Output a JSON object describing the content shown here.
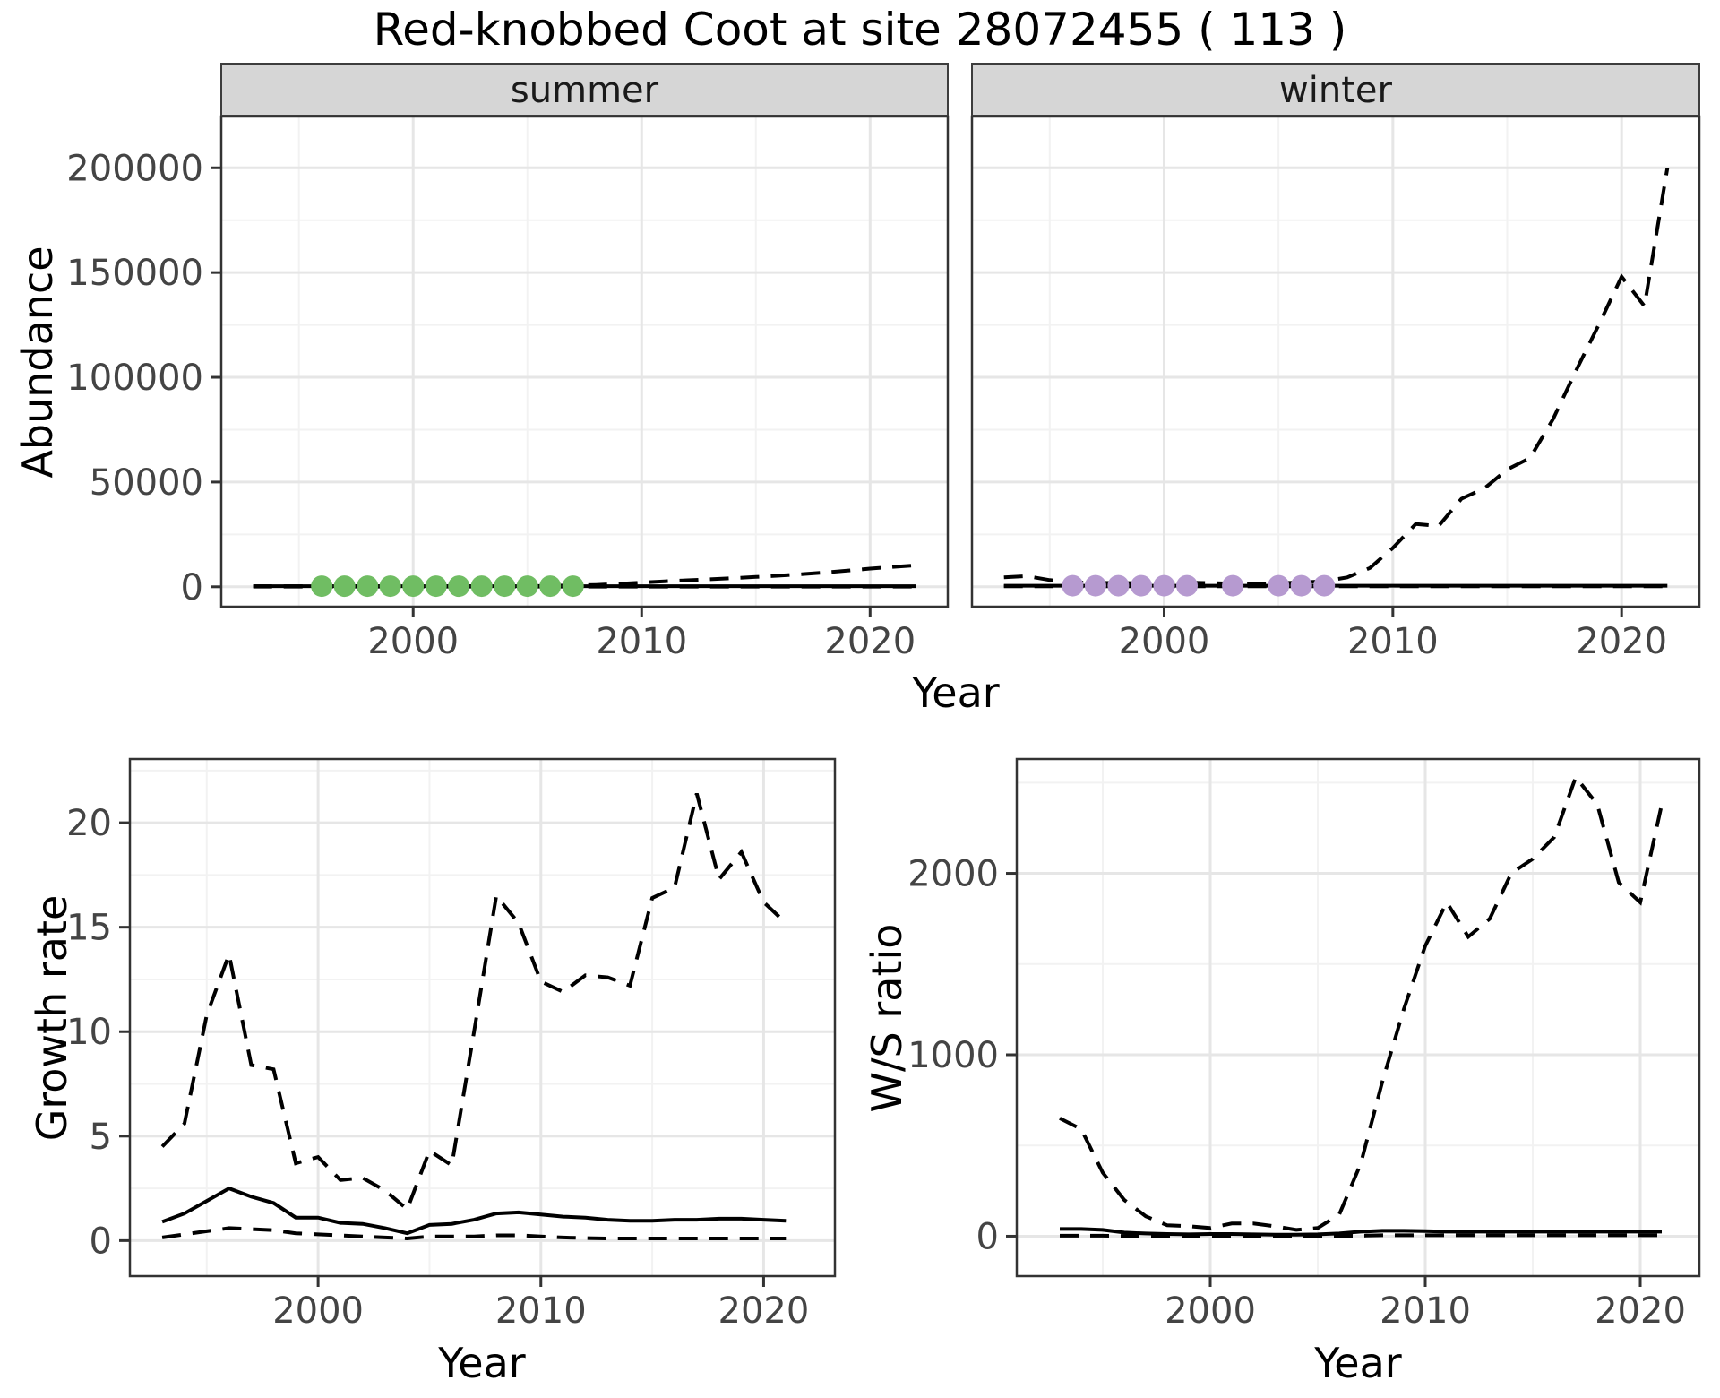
{
  "page_title": "Red-knobbed Coot at site 28072455 ( 113 )",
  "labels": {
    "abundance": "Abundance",
    "growth_rate": "Growth rate",
    "ws_ratio": "W/S ratio",
    "year": "Year"
  },
  "colors": {
    "line": "#000000",
    "summer_point": "#70bd63",
    "winter_point": "#b69ad0",
    "strip_bg": "#d6d6d6",
    "strip_border": "#3d3d3d",
    "panel_border": "#333333",
    "grid_major": "#e6e6e6",
    "grid_minor": "#f2f2f2",
    "tick_mark": "#333333",
    "tick_text": "#444444"
  },
  "chart_data": [
    {
      "id": "abundance_summer",
      "type": "line",
      "facet_label": "summer",
      "xlabel": "Year",
      "ylabel": "Abundance",
      "x_range": [
        1991.6,
        2023.4
      ],
      "y_range": [
        -9500,
        224500
      ],
      "x_ticks": [
        {
          "v": 2000,
          "label": "2000"
        },
        {
          "v": 2010,
          "label": "2010"
        },
        {
          "v": 2020,
          "label": "2020"
        }
      ],
      "x_minor": [
        1995,
        2005,
        2015
      ],
      "y_ticks": [
        {
          "v": 0,
          "label": "0"
        },
        {
          "v": 50000,
          "label": "50000"
        },
        {
          "v": 100000,
          "label": "100000"
        },
        {
          "v": 150000,
          "label": "150000"
        },
        {
          "v": 200000,
          "label": "200000"
        }
      ],
      "y_minor": [
        25000,
        75000,
        125000,
        175000
      ],
      "x": [
        1993,
        1994,
        1995,
        1996,
        1997,
        1998,
        1999,
        2000,
        2001,
        2002,
        2003,
        2004,
        2005,
        2006,
        2007,
        2008,
        2009,
        2010,
        2011,
        2012,
        2013,
        2014,
        2015,
        2016,
        2017,
        2018,
        2019,
        2020,
        2021,
        2022
      ],
      "series": [
        {
          "name": "upper_ci",
          "style": "dashed",
          "values": [
            300,
            300,
            300,
            300,
            300,
            300,
            300,
            300,
            300,
            300,
            300,
            300,
            300,
            500,
            600,
            900,
            1400,
            2000,
            2600,
            3100,
            3600,
            4100,
            4700,
            5300,
            6000,
            6800,
            7700,
            8700,
            9500,
            10200
          ]
        },
        {
          "name": "estimate",
          "style": "solid",
          "values": [
            300,
            300,
            300,
            300,
            300,
            300,
            300,
            300,
            300,
            300,
            300,
            300,
            300,
            300,
            300,
            300,
            300,
            300,
            300,
            300,
            300,
            300,
            300,
            300,
            300,
            300,
            300,
            300,
            300,
            300
          ]
        },
        {
          "name": "lower_ci",
          "style": "dashed",
          "values": [
            100,
            100,
            100,
            100,
            100,
            100,
            100,
            100,
            100,
            100,
            100,
            100,
            100,
            100,
            100,
            100,
            100,
            100,
            100,
            100,
            100,
            100,
            100,
            100,
            100,
            100,
            100,
            100,
            100,
            100
          ]
        }
      ],
      "points": {
        "name": "summer-observation",
        "color_key": "summer_point",
        "x": [
          1996,
          1997,
          1998,
          1999,
          2000,
          2001,
          2002,
          2003,
          2004,
          2005,
          2006,
          2007
        ],
        "y": [
          300,
          300,
          300,
          300,
          300,
          300,
          300,
          300,
          300,
          300,
          300,
          300
        ]
      }
    },
    {
      "id": "abundance_winter",
      "type": "line",
      "facet_label": "winter",
      "xlabel": "Year",
      "ylabel": "Abundance",
      "x_range": [
        1991.6,
        2023.4
      ],
      "y_range": [
        -9500,
        224500
      ],
      "x_ticks": [
        {
          "v": 2000,
          "label": "2000"
        },
        {
          "v": 2010,
          "label": "2010"
        },
        {
          "v": 2020,
          "label": "2020"
        }
      ],
      "x_minor": [
        1995,
        2005,
        2015
      ],
      "y_ticks": [
        {
          "v": 0,
          "label": "0"
        },
        {
          "v": 50000,
          "label": "50000"
        },
        {
          "v": 100000,
          "label": "100000"
        },
        {
          "v": 150000,
          "label": "150000"
        },
        {
          "v": 200000,
          "label": "200000"
        }
      ],
      "y_minor": [
        25000,
        75000,
        125000,
        175000
      ],
      "x": [
        1993,
        1994,
        1995,
        1996,
        1997,
        1998,
        1999,
        2000,
        2001,
        2002,
        2003,
        2004,
        2005,
        2006,
        2007,
        2008,
        2009,
        2010,
        2011,
        2012,
        2013,
        2014,
        2015,
        2016,
        2017,
        2018,
        2019,
        2020,
        2021,
        2022
      ],
      "series": [
        {
          "name": "upper_ci",
          "style": "dashed",
          "values": [
            4500,
            5100,
            3200,
            2100,
            1900,
            1800,
            1800,
            1800,
            2000,
            1800,
            1500,
            1400,
            1700,
            2100,
            2600,
            4500,
            9000,
            18500,
            30000,
            29000,
            42000,
            47000,
            56000,
            61500,
            80000,
            103000,
            125000,
            148000,
            134000,
            200000
          ]
        },
        {
          "name": "estimate",
          "style": "solid",
          "values": [
            500,
            500,
            500,
            500,
            500,
            500,
            500,
            500,
            500,
            500,
            500,
            500,
            500,
            500,
            500,
            500,
            500,
            500,
            500,
            500,
            500,
            500,
            500,
            500,
            500,
            500,
            500,
            500,
            500,
            500
          ]
        },
        {
          "name": "lower_ci",
          "style": "dashed",
          "values": [
            200,
            200,
            200,
            200,
            200,
            200,
            200,
            200,
            200,
            200,
            200,
            200,
            200,
            200,
            200,
            200,
            200,
            200,
            200,
            200,
            200,
            200,
            200,
            200,
            200,
            200,
            200,
            200,
            200,
            200
          ]
        }
      ],
      "points": {
        "name": "winter-observation",
        "color_key": "winter_point",
        "x": [
          1996,
          1997,
          1998,
          1999,
          2000,
          2001,
          2003,
          2005,
          2006,
          2007
        ],
        "y": [
          500,
          500,
          500,
          500,
          500,
          500,
          500,
          500,
          500,
          500
        ]
      }
    },
    {
      "id": "growth_rate",
      "type": "line",
      "facet_label": "",
      "xlabel": "Year",
      "ylabel": "Growth rate",
      "x_range": [
        1991.55,
        2023.2
      ],
      "y_range": [
        -1.7,
        23.05
      ],
      "x_ticks": [
        {
          "v": 2000,
          "label": "2000"
        },
        {
          "v": 2010,
          "label": "2010"
        },
        {
          "v": 2020,
          "label": "2020"
        }
      ],
      "x_minor": [
        1995,
        2005,
        2015
      ],
      "y_ticks": [
        {
          "v": 0,
          "label": "0"
        },
        {
          "v": 5,
          "label": "5"
        },
        {
          "v": 10,
          "label": "10"
        },
        {
          "v": 15,
          "label": "15"
        },
        {
          "v": 20,
          "label": "20"
        }
      ],
      "y_minor": [
        2.5,
        7.5,
        12.5,
        17.5,
        22.5
      ],
      "x": [
        1993,
        1994,
        1995,
        1996,
        1997,
        1998,
        1999,
        2000,
        2001,
        2002,
        2003,
        2004,
        2005,
        2006,
        2007,
        2008,
        2009,
        2010,
        2011,
        2012,
        2013,
        2014,
        2015,
        2016,
        2017,
        2018,
        2019,
        2020,
        2021
      ],
      "series": [
        {
          "name": "upper_ci",
          "style": "dashed",
          "values": [
            4.5,
            5.6,
            10.8,
            13.7,
            8.4,
            8.2,
            3.7,
            4.0,
            2.9,
            3.0,
            2.4,
            1.5,
            4.3,
            3.6,
            10.0,
            16.5,
            15.2,
            12.4,
            11.9,
            12.7,
            12.6,
            12.2,
            16.4,
            16.9,
            21.4,
            17.3,
            18.6,
            16.2,
            15.2
          ]
        },
        {
          "name": "estimate",
          "style": "solid",
          "values": [
            0.9,
            1.3,
            1.9,
            2.5,
            2.1,
            1.8,
            1.1,
            1.1,
            0.85,
            0.8,
            0.6,
            0.35,
            0.75,
            0.8,
            1.0,
            1.3,
            1.35,
            1.25,
            1.15,
            1.1,
            1.0,
            0.95,
            0.95,
            1.0,
            1.0,
            1.05,
            1.05,
            1.0,
            0.95
          ]
        },
        {
          "name": "lower_ci",
          "style": "dashed",
          "values": [
            0.15,
            0.3,
            0.45,
            0.6,
            0.55,
            0.5,
            0.35,
            0.3,
            0.25,
            0.2,
            0.15,
            0.1,
            0.2,
            0.2,
            0.2,
            0.25,
            0.25,
            0.2,
            0.15,
            0.12,
            0.1,
            0.1,
            0.1,
            0.1,
            0.1,
            0.1,
            0.1,
            0.1,
            0.1
          ]
        }
      ],
      "points": null
    },
    {
      "id": "ws_ratio",
      "type": "line",
      "facet_label": "",
      "xlabel": "Year",
      "ylabel": "W/S ratio",
      "x_range": [
        1991.0,
        2022.75
      ],
      "y_range": [
        -220,
        2630
      ],
      "x_ticks": [
        {
          "v": 2000,
          "label": "2000"
        },
        {
          "v": 2010,
          "label": "2010"
        },
        {
          "v": 2020,
          "label": "2020"
        }
      ],
      "x_minor": [
        1995,
        2005,
        2015
      ],
      "y_ticks": [
        {
          "v": 0,
          "label": "0"
        },
        {
          "v": 1000,
          "label": "1000"
        },
        {
          "v": 2000,
          "label": "2000"
        }
      ],
      "y_minor": [
        500,
        1500,
        2500
      ],
      "x": [
        1993,
        1994,
        1995,
        1996,
        1997,
        1998,
        1999,
        2000,
        2001,
        2002,
        2003,
        2004,
        2005,
        2006,
        2007,
        2008,
        2009,
        2010,
        2011,
        2012,
        2013,
        2014,
        2015,
        2016,
        2017,
        2018,
        2019,
        2020,
        2021
      ],
      "series": [
        {
          "name": "upper_ci",
          "style": "dashed",
          "values": [
            650,
            590,
            350,
            200,
            110,
            60,
            55,
            45,
            70,
            70,
            55,
            35,
            45,
            120,
            400,
            850,
            1250,
            1600,
            1840,
            1650,
            1750,
            2000,
            2080,
            2200,
            2530,
            2380,
            1950,
            1840,
            2380
          ]
        },
        {
          "name": "estimate",
          "style": "solid",
          "values": [
            40,
            40,
            35,
            20,
            15,
            12,
            10,
            12,
            12,
            10,
            8,
            8,
            10,
            15,
            25,
            30,
            30,
            28,
            25,
            25,
            25,
            25,
            25,
            25,
            25,
            25,
            25,
            25,
            25
          ]
        },
        {
          "name": "lower_ci",
          "style": "dashed",
          "values": [
            3,
            3,
            3,
            2,
            2,
            2,
            2,
            2,
            2,
            2,
            2,
            2,
            2,
            2,
            3,
            5,
            5,
            5,
            5,
            5,
            5,
            5,
            5,
            5,
            5,
            5,
            5,
            5,
            5
          ]
        }
      ],
      "points": null
    }
  ]
}
